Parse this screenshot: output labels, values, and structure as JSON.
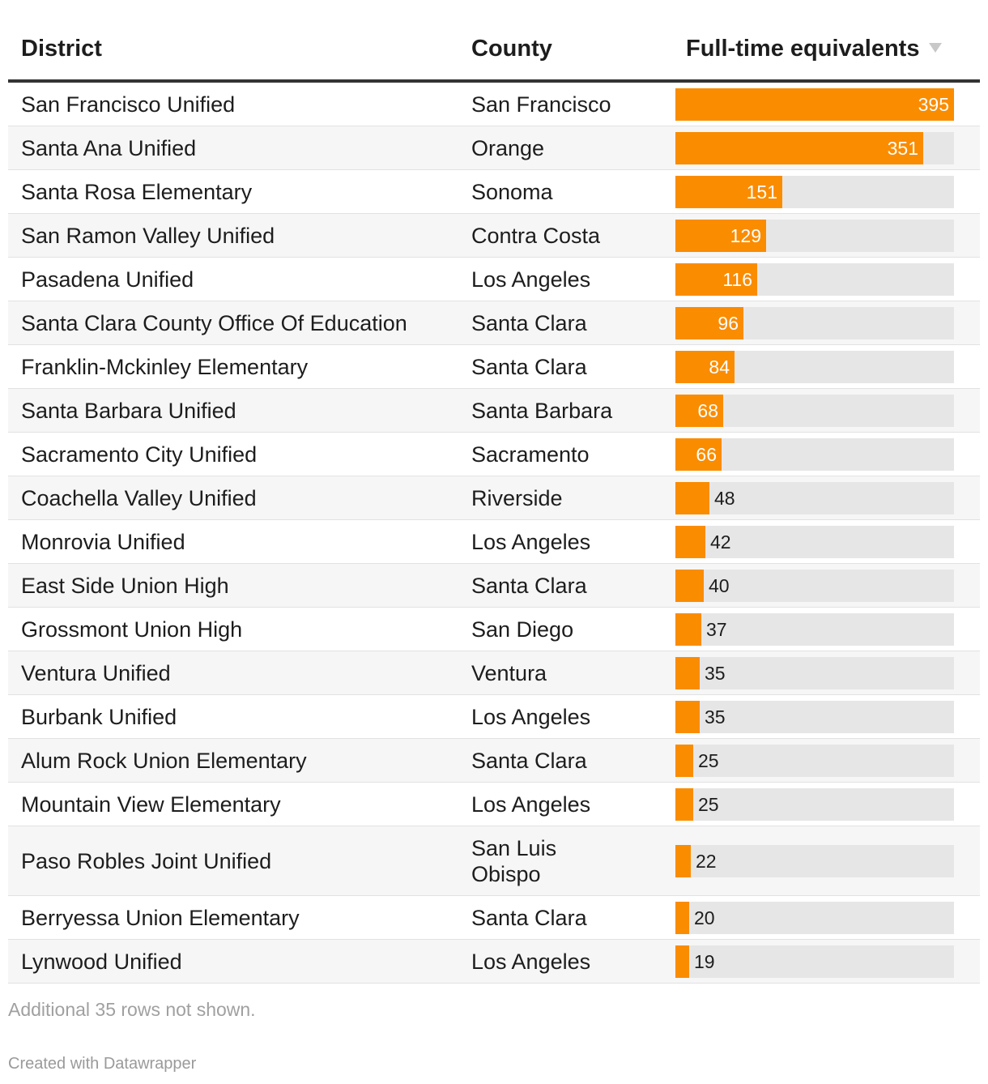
{
  "header": {
    "district": "District",
    "county": "County",
    "fte": "Full-time equivalents",
    "sort_icon": "sort-descending-icon"
  },
  "chart_data": {
    "type": "table",
    "columns": [
      "District",
      "County",
      "Full-time equivalents"
    ],
    "bar_column": "Full-time equivalents",
    "bar_color": "#fa8c00",
    "track_color": "#e6e6e6",
    "max": 395,
    "rows": [
      {
        "district": "San Francisco Unified",
        "county": "San Francisco",
        "fte": 395
      },
      {
        "district": "Santa Ana Unified",
        "county": "Orange",
        "fte": 351
      },
      {
        "district": "Santa Rosa Elementary",
        "county": "Sonoma",
        "fte": 151
      },
      {
        "district": "San Ramon Valley Unified",
        "county": "Contra Costa",
        "fte": 129
      },
      {
        "district": "Pasadena Unified",
        "county": "Los Angeles",
        "fte": 116
      },
      {
        "district": "Santa Clara County Office Of Education",
        "county": "Santa Clara",
        "fte": 96
      },
      {
        "district": "Franklin-Mckinley Elementary",
        "county": "Santa Clara",
        "fte": 84
      },
      {
        "district": "Santa Barbara Unified",
        "county": "Santa Barbara",
        "fte": 68
      },
      {
        "district": "Sacramento City Unified",
        "county": "Sacramento",
        "fte": 66
      },
      {
        "district": "Coachella Valley Unified",
        "county": "Riverside",
        "fte": 48
      },
      {
        "district": "Monrovia Unified",
        "county": "Los Angeles",
        "fte": 42
      },
      {
        "district": "East Side Union High",
        "county": "Santa Clara",
        "fte": 40
      },
      {
        "district": "Grossmont Union High",
        "county": "San Diego",
        "fte": 37
      },
      {
        "district": "Ventura Unified",
        "county": "Ventura",
        "fte": 35
      },
      {
        "district": "Burbank Unified",
        "county": "Los Angeles",
        "fte": 35
      },
      {
        "district": "Alum Rock Union Elementary",
        "county": "Santa Clara",
        "fte": 25
      },
      {
        "district": "Mountain View Elementary",
        "county": "Los Angeles",
        "fte": 25
      },
      {
        "district": "Paso Robles Joint Unified",
        "county": "San Luis Obispo",
        "fte": 22
      },
      {
        "district": "Berryessa Union Elementary",
        "county": "Santa Clara",
        "fte": 20
      },
      {
        "district": "Lynwood Unified",
        "county": "Los Angeles",
        "fte": 19
      }
    ]
  },
  "footer": {
    "notes": "Additional 35 rows not shown.",
    "credit": "Created with Datawrapper"
  }
}
